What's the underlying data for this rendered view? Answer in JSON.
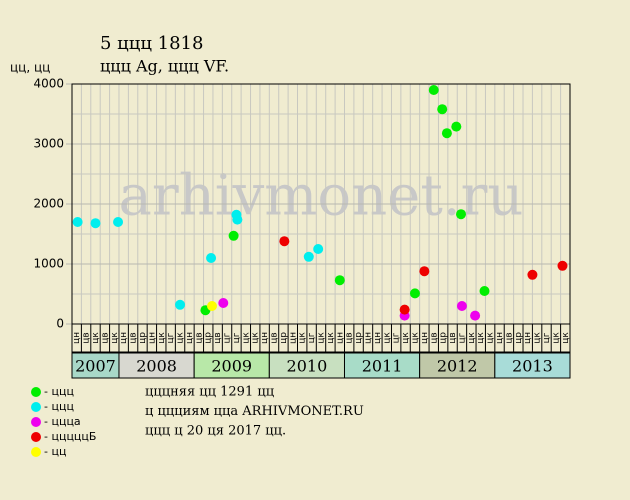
{
  "chart_data": {
    "type": "scatter",
    "title": "5 ццц 1818",
    "subtitle": "ццц Ag, ццц VF.",
    "y_label": "цц, цц",
    "watermark": "arhivmonet.ru",
    "ylim": [
      0,
      4000
    ],
    "yticks": [
      0,
      1000,
      2000,
      3000,
      4000
    ],
    "y_minor_grid": [
      500,
      1500,
      2500,
      3500
    ],
    "xlim": [
      0,
      53
    ],
    "columns": [
      "цн",
      "цв",
      "цк",
      "цв",
      "цк",
      "цн",
      "цв",
      "цр",
      "цн",
      "цк",
      "цг",
      "цк",
      "цн",
      "цв",
      "цр",
      "цв",
      "цг",
      "цг",
      "цк",
      "цк",
      "цн",
      "цв",
      "цр",
      "цн",
      "цк",
      "цг",
      "цк",
      "цк",
      "цн",
      "цв",
      "цр",
      "цн",
      "цн",
      "цк",
      "цг",
      "цк",
      "цк",
      "цн",
      "цв",
      "цр",
      "цв",
      "цг",
      "цк",
      "цк",
      "цк",
      "цн",
      "цв",
      "цр",
      "цн",
      "цк",
      "цг",
      "цк",
      "цк"
    ],
    "years": [
      {
        "label": "2007",
        "range": [
          0,
          5
        ],
        "color": "#a8d8c8"
      },
      {
        "label": "2008",
        "range": [
          5,
          13
        ],
        "color": "#d8d8d0"
      },
      {
        "label": "2009",
        "range": [
          13,
          21
        ],
        "color": "#b8e8a8"
      },
      {
        "label": "2010",
        "range": [
          21,
          29
        ],
        "color": "#c8e0c0"
      },
      {
        "label": "2011",
        "range": [
          29,
          37
        ],
        "color": "#a8dcc8"
      },
      {
        "label": "2012",
        "range": [
          37,
          45
        ],
        "color": "#c0c8a8"
      },
      {
        "label": "2013",
        "range": [
          45,
          53
        ],
        "color": "#a8dcd8"
      }
    ],
    "series": [
      {
        "name": "- ццц",
        "color": "#00ee00",
        "x": [
          14.2,
          17.2,
          28.5,
          36.5,
          38.5,
          39.4,
          39.9,
          40.9,
          41.4,
          43.9
        ],
        "values": [
          230,
          1470,
          730,
          510,
          3900,
          3580,
          3180,
          3290,
          1830,
          550
        ]
      },
      {
        "name": "- ццц",
        "color": "#00eeee",
        "x": [
          0.6,
          2.5,
          4.9,
          11.5,
          14.8,
          17.5,
          17.6,
          25.2,
          26.2
        ],
        "values": [
          1700,
          1680,
          1700,
          320,
          1100,
          1820,
          1740,
          1120,
          1250
        ]
      },
      {
        "name": "- ццца",
        "color": "#ee00ee",
        "x": [
          16.1,
          35.4,
          41.5,
          42.9
        ],
        "values": [
          350,
          140,
          300,
          140
        ]
      },
      {
        "name": "- цццццБ",
        "color": "#ee0000",
        "x": [
          22.6,
          35.4,
          37.5,
          49.0,
          52.2
        ],
        "values": [
          1380,
          240,
          880,
          820,
          970
        ]
      },
      {
        "name": "- цц",
        "color": "#ffff00",
        "x": [
          14.9
        ],
        "values": [
          300
        ]
      }
    ],
    "notes": [
      "цццняя цц 1291 цц",
      "ц ццциям ццa ARHIVMONET.RU",
      "ццц ц 20 ця 2017 цц."
    ]
  }
}
